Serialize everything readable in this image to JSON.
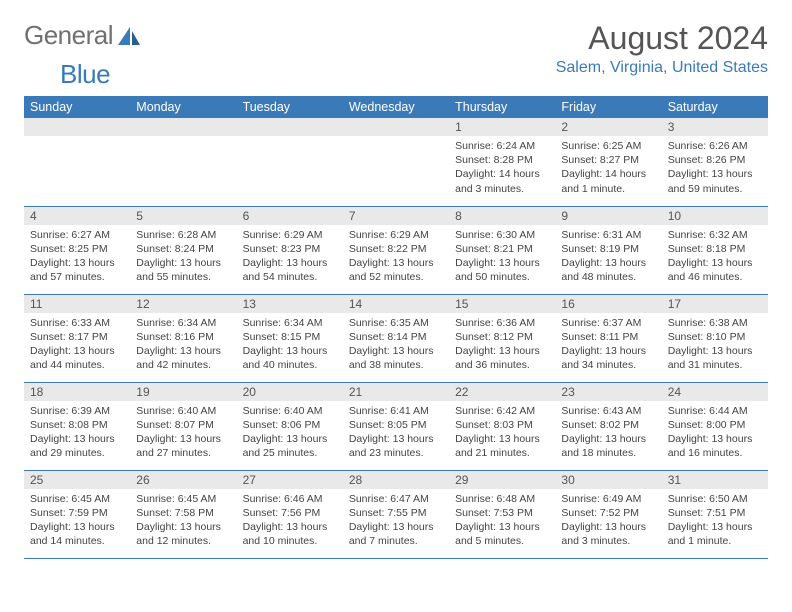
{
  "logo": {
    "text_a": "General",
    "text_b": "Blue"
  },
  "title": "August 2024",
  "location": "Salem, Virginia, United States",
  "colors": {
    "header_bg": "#3b7ab8",
    "daynum_bg": "#e9e9e9",
    "border": "#3b7ab8"
  },
  "weekdays": [
    "Sunday",
    "Monday",
    "Tuesday",
    "Wednesday",
    "Thursday",
    "Friday",
    "Saturday"
  ],
  "weeks": [
    [
      null,
      null,
      null,
      null,
      {
        "n": "1",
        "sr": "6:24 AM",
        "ss": "8:28 PM",
        "dl": "14 hours and 3 minutes."
      },
      {
        "n": "2",
        "sr": "6:25 AM",
        "ss": "8:27 PM",
        "dl": "14 hours and 1 minute."
      },
      {
        "n": "3",
        "sr": "6:26 AM",
        "ss": "8:26 PM",
        "dl": "13 hours and 59 minutes."
      }
    ],
    [
      {
        "n": "4",
        "sr": "6:27 AM",
        "ss": "8:25 PM",
        "dl": "13 hours and 57 minutes."
      },
      {
        "n": "5",
        "sr": "6:28 AM",
        "ss": "8:24 PM",
        "dl": "13 hours and 55 minutes."
      },
      {
        "n": "6",
        "sr": "6:29 AM",
        "ss": "8:23 PM",
        "dl": "13 hours and 54 minutes."
      },
      {
        "n": "7",
        "sr": "6:29 AM",
        "ss": "8:22 PM",
        "dl": "13 hours and 52 minutes."
      },
      {
        "n": "8",
        "sr": "6:30 AM",
        "ss": "8:21 PM",
        "dl": "13 hours and 50 minutes."
      },
      {
        "n": "9",
        "sr": "6:31 AM",
        "ss": "8:19 PM",
        "dl": "13 hours and 48 minutes."
      },
      {
        "n": "10",
        "sr": "6:32 AM",
        "ss": "8:18 PM",
        "dl": "13 hours and 46 minutes."
      }
    ],
    [
      {
        "n": "11",
        "sr": "6:33 AM",
        "ss": "8:17 PM",
        "dl": "13 hours and 44 minutes."
      },
      {
        "n": "12",
        "sr": "6:34 AM",
        "ss": "8:16 PM",
        "dl": "13 hours and 42 minutes."
      },
      {
        "n": "13",
        "sr": "6:34 AM",
        "ss": "8:15 PM",
        "dl": "13 hours and 40 minutes."
      },
      {
        "n": "14",
        "sr": "6:35 AM",
        "ss": "8:14 PM",
        "dl": "13 hours and 38 minutes."
      },
      {
        "n": "15",
        "sr": "6:36 AM",
        "ss": "8:12 PM",
        "dl": "13 hours and 36 minutes."
      },
      {
        "n": "16",
        "sr": "6:37 AM",
        "ss": "8:11 PM",
        "dl": "13 hours and 34 minutes."
      },
      {
        "n": "17",
        "sr": "6:38 AM",
        "ss": "8:10 PM",
        "dl": "13 hours and 31 minutes."
      }
    ],
    [
      {
        "n": "18",
        "sr": "6:39 AM",
        "ss": "8:08 PM",
        "dl": "13 hours and 29 minutes."
      },
      {
        "n": "19",
        "sr": "6:40 AM",
        "ss": "8:07 PM",
        "dl": "13 hours and 27 minutes."
      },
      {
        "n": "20",
        "sr": "6:40 AM",
        "ss": "8:06 PM",
        "dl": "13 hours and 25 minutes."
      },
      {
        "n": "21",
        "sr": "6:41 AM",
        "ss": "8:05 PM",
        "dl": "13 hours and 23 minutes."
      },
      {
        "n": "22",
        "sr": "6:42 AM",
        "ss": "8:03 PM",
        "dl": "13 hours and 21 minutes."
      },
      {
        "n": "23",
        "sr": "6:43 AM",
        "ss": "8:02 PM",
        "dl": "13 hours and 18 minutes."
      },
      {
        "n": "24",
        "sr": "6:44 AM",
        "ss": "8:00 PM",
        "dl": "13 hours and 16 minutes."
      }
    ],
    [
      {
        "n": "25",
        "sr": "6:45 AM",
        "ss": "7:59 PM",
        "dl": "13 hours and 14 minutes."
      },
      {
        "n": "26",
        "sr": "6:45 AM",
        "ss": "7:58 PM",
        "dl": "13 hours and 12 minutes."
      },
      {
        "n": "27",
        "sr": "6:46 AM",
        "ss": "7:56 PM",
        "dl": "13 hours and 10 minutes."
      },
      {
        "n": "28",
        "sr": "6:47 AM",
        "ss": "7:55 PM",
        "dl": "13 hours and 7 minutes."
      },
      {
        "n": "29",
        "sr": "6:48 AM",
        "ss": "7:53 PM",
        "dl": "13 hours and 5 minutes."
      },
      {
        "n": "30",
        "sr": "6:49 AM",
        "ss": "7:52 PM",
        "dl": "13 hours and 3 minutes."
      },
      {
        "n": "31",
        "sr": "6:50 AM",
        "ss": "7:51 PM",
        "dl": "13 hours and 1 minute."
      }
    ]
  ],
  "labels": {
    "sunrise": "Sunrise: ",
    "sunset": "Sunset: ",
    "daylight": "Daylight: "
  }
}
